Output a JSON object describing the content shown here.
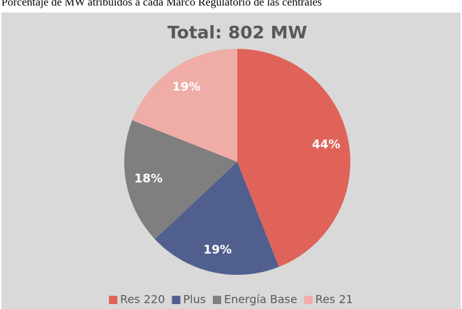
{
  "caption": "Porcentaje de MW atribuidos a cada Marco Regulatorio de las centrales",
  "chart_data": {
    "type": "pie",
    "title": "Total: 802 MW",
    "categories": [
      "Res 220",
      "Plus",
      "Energía Base",
      "Res 21"
    ],
    "values": [
      44,
      19,
      18,
      19
    ],
    "value_labels": [
      "44%",
      "19%",
      "18%",
      "19%"
    ],
    "colors": [
      "#e0635a",
      "#505f8e",
      "#7f7f7f",
      "#f0aca7"
    ],
    "legend": "bottom"
  }
}
